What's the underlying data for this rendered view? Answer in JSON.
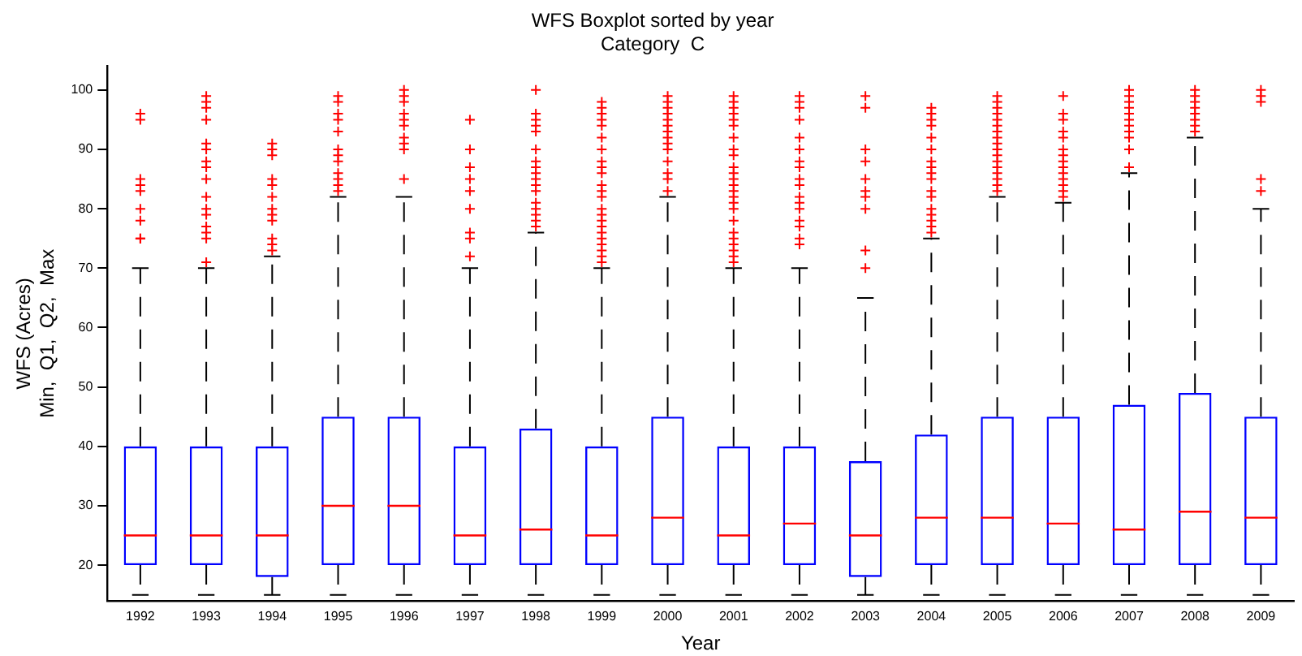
{
  "chart_data": {
    "type": "box",
    "title": "WFS Boxplot sorted by year",
    "subtitle": "Category  C",
    "xlabel": "Year",
    "ylabel": "WFS (Acres)\nMin,  Q1,  Q2,  Max",
    "categories": [
      "1992",
      "1993",
      "1994",
      "1995",
      "1996",
      "1997",
      "1998",
      "1999",
      "2000",
      "2001",
      "2002",
      "2003",
      "2004",
      "2005",
      "2006",
      "2007",
      "2008",
      "2009"
    ],
    "ylim": [
      14,
      104
    ],
    "yticks": [
      20,
      30,
      40,
      50,
      60,
      70,
      80,
      90,
      100
    ],
    "grid": false,
    "legend": false,
    "marker": "cross",
    "series": [
      {
        "color": "#0000ff",
        "boxes": [
          {
            "low": 15,
            "q1": 20,
            "median": 25,
            "q3": 40,
            "high": 70,
            "outliers": [
              75,
              75,
              78,
              80,
              83,
              84,
              85,
              95,
              96
            ]
          },
          {
            "low": 15,
            "q1": 20,
            "median": 25,
            "q3": 40,
            "high": 70,
            "outliers": [
              71,
              75,
              76,
              77,
              79,
              80,
              82,
              85,
              87,
              88,
              90,
              91,
              95,
              97,
              98,
              99
            ]
          },
          {
            "low": 15,
            "q1": 18,
            "median": 25,
            "q3": 40,
            "high": 72,
            "outliers": [
              73,
              74,
              75,
              78,
              79,
              80,
              82,
              84,
              85,
              89,
              90,
              91
            ]
          },
          {
            "low": 15,
            "q1": 20,
            "median": 30,
            "q3": 45,
            "high": 82,
            "outliers": [
              83,
              84,
              85,
              86,
              88,
              89,
              90,
              93,
              95,
              96,
              98,
              99
            ]
          },
          {
            "low": 15,
            "q1": 20,
            "median": 30,
            "q3": 45,
            "high": 82,
            "outliers": [
              85,
              90,
              91,
              92,
              94,
              95,
              96,
              98,
              99,
              100
            ]
          },
          {
            "low": 15,
            "q1": 20,
            "median": 25,
            "q3": 40,
            "high": 70,
            "outliers": [
              72,
              75,
              76,
              80,
              83,
              85,
              87,
              90,
              95
            ]
          },
          {
            "low": 15,
            "q1": 20,
            "median": 26,
            "q3": 43,
            "high": 76,
            "outliers": [
              77,
              78,
              79,
              80,
              81,
              83,
              84,
              85,
              86,
              87,
              88,
              90,
              93,
              94,
              95,
              96,
              100
            ]
          },
          {
            "low": 15,
            "q1": 20,
            "median": 25,
            "q3": 40,
            "high": 70,
            "outliers": [
              71,
              72,
              73,
              74,
              75,
              76,
              77,
              78,
              79,
              80,
              82,
              83,
              84,
              86,
              87,
              88,
              90,
              92,
              94,
              95,
              96,
              97,
              98
            ]
          },
          {
            "low": 15,
            "q1": 20,
            "median": 28,
            "q3": 45,
            "high": 82,
            "outliers": [
              83,
              85,
              86,
              88,
              90,
              91,
              92,
              93,
              94,
              95,
              96,
              97,
              98,
              99
            ]
          },
          {
            "low": 15,
            "q1": 20,
            "median": 25,
            "q3": 40,
            "high": 70,
            "outliers": [
              71,
              72,
              73,
              74,
              75,
              76,
              78,
              80,
              81,
              82,
              83,
              84,
              85,
              86,
              87,
              89,
              90,
              92,
              94,
              95,
              96,
              97,
              98,
              99
            ]
          },
          {
            "low": 15,
            "q1": 20,
            "median": 27,
            "q3": 40,
            "high": 70,
            "outliers": [
              74,
              75,
              77,
              78,
              80,
              81,
              82,
              84,
              85,
              87,
              88,
              90,
              92,
              95,
              97,
              98,
              99
            ]
          },
          {
            "low": 15,
            "q1": 18,
            "median": 25,
            "q3": 37.5,
            "high": 65,
            "outliers": [
              70,
              73,
              80,
              82,
              83,
              85,
              88,
              90,
              97,
              99
            ]
          },
          {
            "low": 15,
            "q1": 20,
            "median": 28,
            "q3": 42,
            "high": 75,
            "outliers": [
              76,
              77,
              78,
              79,
              80,
              82,
              83,
              85,
              86,
              87,
              88,
              90,
              92,
              94,
              95,
              96,
              97
            ]
          },
          {
            "low": 15,
            "q1": 20,
            "median": 28,
            "q3": 45,
            "high": 82,
            "outliers": [
              83,
              84,
              85,
              86,
              87,
              88,
              89,
              90,
              91,
              92,
              93,
              94,
              95,
              96,
              97,
              98,
              99
            ]
          },
          {
            "low": 15,
            "q1": 20,
            "median": 27,
            "q3": 45,
            "high": 81,
            "outliers": [
              82,
              83,
              84,
              85,
              86,
              87,
              88,
              89,
              90,
              92,
              93,
              95,
              96,
              99
            ]
          },
          {
            "low": 15,
            "q1": 20,
            "median": 26,
            "q3": 47,
            "high": 86,
            "outliers": [
              87,
              90,
              92,
              93,
              94,
              95,
              96,
              97,
              98,
              99,
              100
            ]
          },
          {
            "low": 15,
            "q1": 20,
            "median": 29,
            "q3": 49,
            "high": 92,
            "outliers": [
              93,
              94,
              95,
              96,
              97,
              98,
              99,
              100
            ]
          },
          {
            "low": 15,
            "q1": 20,
            "median": 28,
            "q3": 45,
            "high": 80,
            "outliers": [
              83,
              85,
              98,
              99,
              100
            ]
          }
        ]
      }
    ]
  }
}
